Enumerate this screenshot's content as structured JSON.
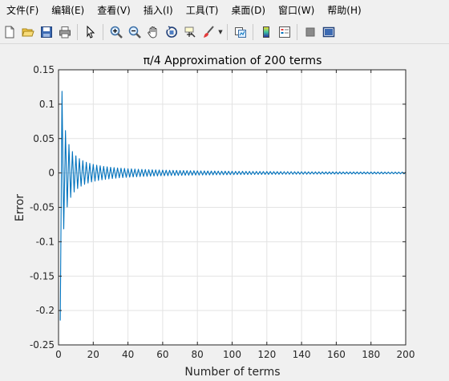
{
  "menu": {
    "items": [
      "文件(F)",
      "编辑(E)",
      "查看(V)",
      "插入(I)",
      "工具(T)",
      "桌面(D)",
      "窗口(W)",
      "帮助(H)"
    ]
  },
  "toolbar": {
    "icons": [
      "new-figure-icon",
      "open-file-icon",
      "save-icon",
      "print-icon",
      "select-arrow-icon",
      "zoom-in-icon",
      "zoom-out-icon",
      "pan-hand-icon",
      "rotate-3d-icon",
      "data-cursor-icon",
      "brush-icon",
      "link-plot-icon",
      "colorbar-icon",
      "legend-icon",
      "hide-plot-tools-icon",
      "show-plot-tools-icon"
    ]
  },
  "colors": {
    "line": "#0072BD",
    "grid": "#e3e3e3",
    "axes": "#262626"
  },
  "chart_data": {
    "type": "line",
    "title": "π/4 Approximation of 200 terms",
    "xlabel": "Number of terms",
    "ylabel": "Error",
    "xlim": [
      0,
      200
    ],
    "ylim": [
      -0.25,
      0.15
    ],
    "xticks": [
      0,
      20,
      40,
      60,
      80,
      100,
      120,
      140,
      160,
      180,
      200
    ],
    "yticks": [
      -0.25,
      -0.2,
      -0.15,
      -0.1,
      -0.05,
      0,
      0.05,
      0.1,
      0.15
    ],
    "xtick_labels": [
      "0",
      "20",
      "40",
      "60",
      "80",
      "100",
      "120",
      "140",
      "160",
      "180",
      "200"
    ],
    "ytick_labels": [
      "-0.25",
      "-0.2",
      "-0.15",
      "-0.1",
      "-0.05",
      "0",
      "0.05",
      "0.1",
      "0.15"
    ],
    "grid": true,
    "series": [
      {
        "x": [
          1,
          2,
          3,
          4,
          5,
          6,
          7,
          8,
          9,
          10,
          11,
          12,
          13,
          14,
          15,
          16,
          17,
          18,
          19,
          20,
          21,
          22,
          23,
          24,
          25,
          26,
          27,
          28,
          29,
          30,
          31,
          32,
          33,
          34,
          35,
          36,
          37,
          38,
          39,
          40,
          41,
          42,
          43,
          44,
          45,
          46,
          47,
          48,
          49,
          50,
          51,
          52,
          53,
          54,
          55,
          56,
          57,
          58,
          59,
          60,
          61,
          62,
          63,
          64,
          65,
          66,
          67,
          68,
          69,
          70,
          71,
          72,
          73,
          74,
          75,
          76,
          77,
          78,
          79,
          80,
          81,
          82,
          83,
          84,
          85,
          86,
          87,
          88,
          89,
          90,
          91,
          92,
          93,
          94,
          95,
          96,
          97,
          98,
          99,
          100,
          101,
          102,
          103,
          104,
          105,
          106,
          107,
          108,
          109,
          110,
          111,
          112,
          113,
          114,
          115,
          116,
          117,
          118,
          119,
          120,
          121,
          122,
          123,
          124,
          125,
          126,
          127,
          128,
          129,
          130,
          131,
          132,
          133,
          134,
          135,
          136,
          137,
          138,
          139,
          140,
          141,
          142,
          143,
          144,
          145,
          146,
          147,
          148,
          149,
          150,
          151,
          152,
          153,
          154,
          155,
          156,
          157,
          158,
          159,
          160,
          161,
          162,
          163,
          164,
          165,
          166,
          167,
          168,
          169,
          170,
          171,
          172,
          173,
          174,
          175,
          176,
          177,
          178,
          179,
          180,
          181,
          182,
          183,
          184,
          185,
          186,
          187,
          188,
          189,
          190,
          191,
          192,
          193,
          194,
          195,
          196,
          197,
          198,
          199,
          200
        ],
        "y": [
          -0.2146,
          0.1187,
          -0.0813,
          0.0616,
          -0.0495,
          0.0414,
          -0.0355,
          0.0311,
          -0.0277,
          0.0249,
          -0.0227,
          0.0208,
          -0.0192,
          0.0178,
          -0.0166,
          0.0156,
          -0.0147,
          0.0139,
          -0.0131,
          0.0125,
          -0.0119,
          0.0113,
          -0.0109,
          0.0104,
          -0.01,
          0.0096,
          -0.0092,
          0.0089,
          -0.0086,
          0.0083,
          -0.0081,
          0.0078,
          -0.0076,
          0.0073,
          -0.0071,
          0.0069,
          -0.0068,
          0.0066,
          -0.0064,
          0.0062,
          -0.0061,
          0.006,
          -0.0058,
          0.0057,
          -0.0056,
          0.0054,
          -0.0053,
          0.0052,
          -0.0051,
          0.005,
          -0.0049,
          0.0048,
          -0.0047,
          0.0046,
          -0.0045,
          0.0045,
          -0.0044,
          0.0043,
          -0.0042,
          0.0042,
          -0.0041,
          0.004,
          -0.004,
          0.0039,
          -0.0038,
          0.0038,
          -0.0037,
          0.0037,
          -0.0036,
          0.0036,
          -0.0035,
          0.0035,
          -0.0034,
          0.0034,
          -0.0033,
          0.0033,
          -0.0032,
          0.0032,
          -0.0031,
          0.0031,
          -0.0031,
          0.003,
          -0.003,
          0.003,
          -0.0029,
          0.0029,
          -0.0029,
          0.0028,
          -0.0028,
          0.0028,
          -0.0027,
          0.0027,
          -0.0027,
          0.0026,
          -0.0026,
          0.0026,
          -0.0026,
          0.0025,
          -0.0025,
          0.0025,
          -0.0025,
          0.0024,
          -0.0024,
          0.0024,
          -0.0024,
          0.0024,
          -0.0023,
          0.0023,
          -0.0023,
          0.0023,
          -0.0023,
          0.0022,
          -0.0022,
          0.0022,
          -0.0022,
          0.0022,
          -0.0021,
          0.0021,
          -0.0021,
          0.0021,
          -0.0021,
          0.0021,
          -0.002,
          0.002,
          -0.002,
          0.002,
          -0.002,
          0.002,
          -0.0019,
          0.0019,
          -0.0019,
          0.0019,
          -0.0019,
          0.0019,
          -0.0019,
          0.0018,
          -0.0018,
          0.0018,
          -0.0018,
          0.0018,
          -0.0018,
          0.0018,
          -0.0018,
          0.0017,
          -0.0017,
          0.0017,
          -0.0017,
          0.0017,
          -0.0017,
          0.0017,
          -0.0017,
          0.0017,
          -0.0016,
          0.0016,
          -0.0016,
          0.0016,
          -0.0016,
          0.0016,
          -0.0016,
          0.0016,
          -0.0016,
          0.0016,
          -0.0015,
          0.0015,
          -0.0015,
          0.0015,
          -0.0015,
          0.0015,
          -0.0015,
          0.0015,
          -0.0015,
          0.0015,
          -0.0015,
          0.0014,
          -0.0014,
          0.0014,
          -0.0014,
          0.0014,
          -0.0014,
          0.0014,
          -0.0014,
          0.0014,
          -0.0014,
          0.0014,
          -0.0014,
          0.0014,
          -0.0014,
          0.0013,
          -0.0013,
          0.0013,
          -0.0013,
          0.0013,
          -0.0013,
          0.0013,
          -0.0013,
          0.0013,
          -0.0013,
          0.0013,
          -0.0013,
          0.0013
        ]
      }
    ]
  }
}
